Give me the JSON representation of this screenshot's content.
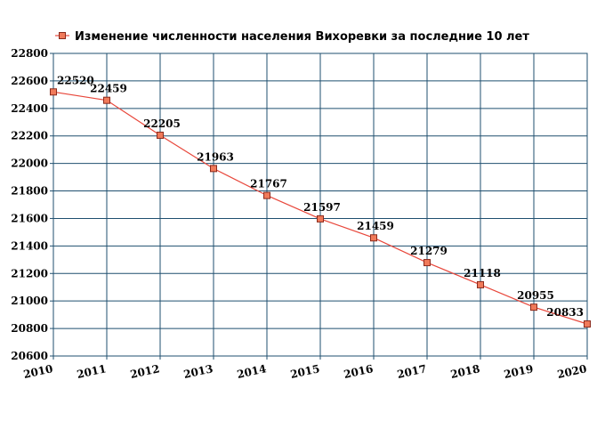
{
  "chart_data": {
    "type": "line",
    "title": "",
    "xlabel": "",
    "ylabel": "",
    "legend": {
      "entries": [
        "Изменение численности населения Вихоревки за последние 10 лет"
      ],
      "placement": "top-left"
    },
    "x": [
      "2010",
      "2011",
      "2012",
      "2013",
      "2014",
      "2015",
      "2016",
      "2017",
      "2018",
      "2019",
      "2020"
    ],
    "series": [
      {
        "name": "Изменение численности населения Вихоревки за последние 10 лет",
        "values": [
          22520,
          22459,
          22205,
          21963,
          21767,
          21597,
          21459,
          21279,
          21118,
          20955,
          20833
        ],
        "labels": [
          "22520",
          "22459",
          "22205",
          "21963",
          "21767",
          "21597",
          "21459",
          "21279",
          "21118",
          "20955",
          "20833"
        ],
        "color": "#e8473b",
        "marker_fill": "#f07a5a",
        "marker_stroke": "#8b2a1c"
      }
    ],
    "yticks": [
      "20600",
      "20800",
      "21000",
      "21200",
      "21400",
      "21600",
      "21800",
      "22000",
      "22200",
      "22400",
      "22600",
      "22800"
    ],
    "ylim": [
      20600,
      22800
    ],
    "grid": true,
    "grid_color": "#1f4f6f"
  }
}
